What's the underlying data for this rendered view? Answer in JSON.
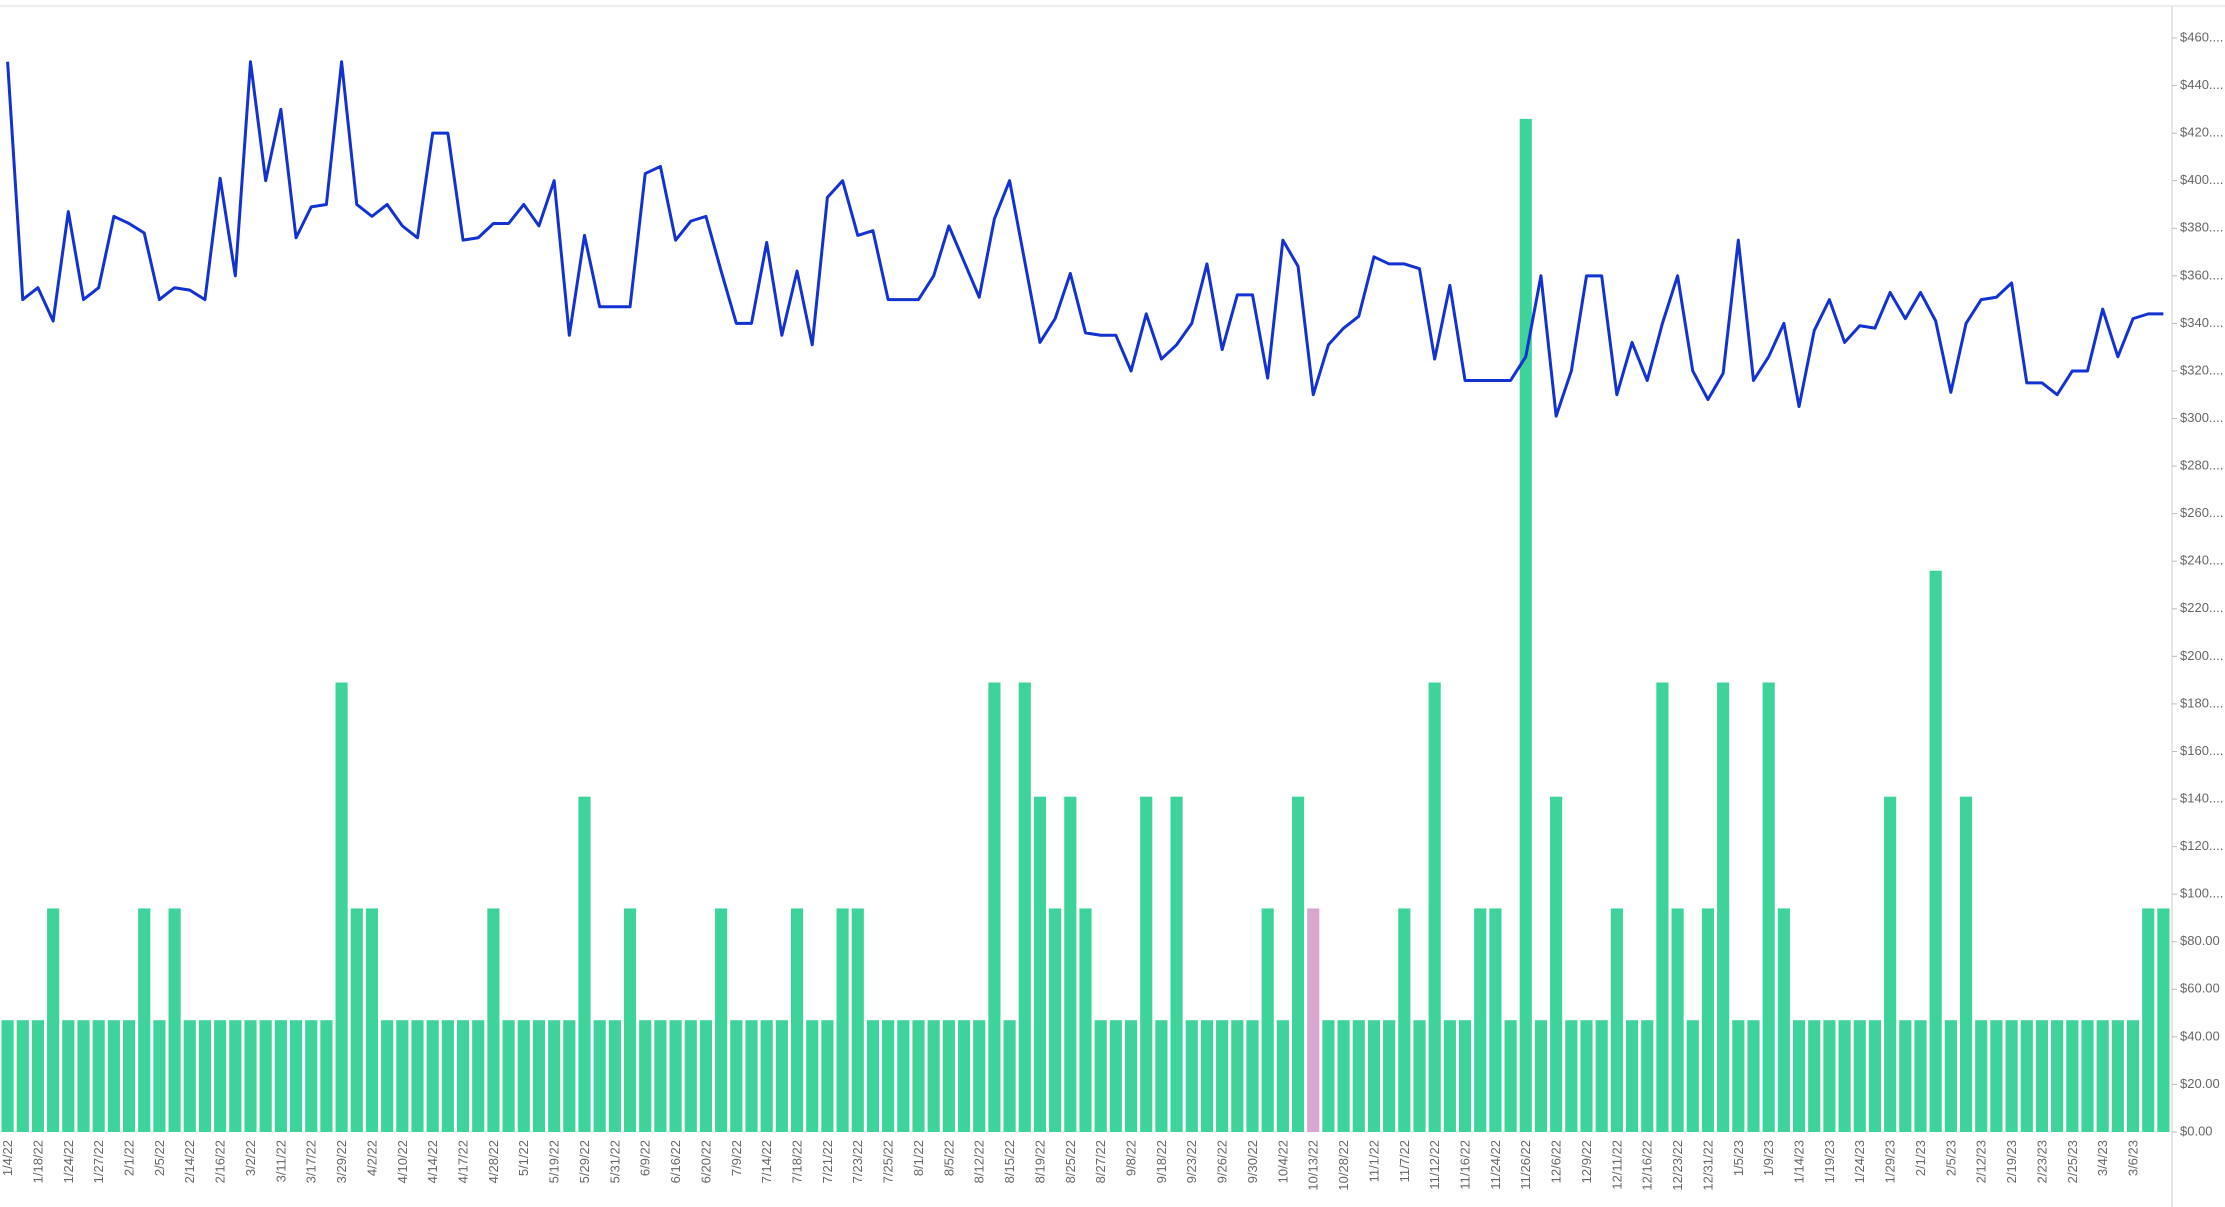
{
  "chart_data": {
    "type": "combo",
    "categories": [
      "1/4/22",
      null,
      "1/18/22",
      null,
      "1/24/22",
      null,
      "1/27/22",
      null,
      "2/1/22",
      null,
      "2/5/22",
      null,
      "2/14/22",
      null,
      "2/16/22",
      null,
      "3/2/22",
      null,
      "3/11/22",
      null,
      "3/17/22",
      null,
      "3/29/22",
      null,
      "4/2/22",
      null,
      "4/10/22",
      null,
      "4/14/22",
      null,
      "4/17/22",
      null,
      "4/28/22",
      null,
      "5/1/22",
      null,
      "5/19/22",
      null,
      "5/29/22",
      null,
      "5/31/22",
      null,
      "6/9/22",
      null,
      "6/16/22",
      null,
      "6/20/22",
      null,
      "7/9/22",
      null,
      "7/14/22",
      null,
      "7/18/22",
      null,
      "7/21/22",
      null,
      "7/23/22",
      null,
      "7/25/22",
      null,
      "8/1/22",
      null,
      "8/5/22",
      null,
      "8/12/22",
      null,
      "8/15/22",
      null,
      "8/19/22",
      null,
      "8/25/22",
      null,
      "8/27/22",
      null,
      "9/8/22",
      null,
      "9/18/22",
      null,
      "9/23/22",
      null,
      "9/26/22",
      null,
      "9/30/22",
      null,
      "10/4/22",
      null,
      "10/13/22",
      null,
      "10/28/22",
      null,
      "11/1/22",
      null,
      "11/7/22",
      null,
      "11/12/22",
      null,
      "11/16/22",
      null,
      "11/24/22",
      null,
      "11/26/22",
      null,
      "12/6/22",
      null,
      "12/9/22",
      null,
      "12/11/22",
      null,
      "12/16/22",
      null,
      "12/23/22",
      null,
      "12/31/22",
      null,
      "1/5/23",
      null,
      "1/9/23",
      null,
      "1/14/23",
      null,
      "1/19/23",
      null,
      "1/24/23",
      null,
      "1/29/23",
      null,
      "2/1/23",
      null,
      "2/5/23",
      null,
      "2/12/23",
      null,
      "2/19/23",
      null,
      "2/23/23",
      null,
      "2/25/23",
      null,
      "3/4/23",
      null,
      "3/6/23",
      null,
      null
    ],
    "series": [
      {
        "type": "bar",
        "color": "#3dd39a",
        "point_colors": {
          "86": "#d9a6cf"
        },
        "values": [
          47,
          47,
          47,
          94,
          47,
          47,
          47,
          47,
          47,
          94,
          47,
          94,
          47,
          47,
          47,
          47,
          47,
          47,
          47,
          47,
          47,
          47,
          189,
          94,
          94,
          47,
          47,
          47,
          47,
          47,
          47,
          47,
          94,
          47,
          47,
          47,
          47,
          47,
          141,
          47,
          47,
          94,
          47,
          47,
          47,
          47,
          47,
          94,
          47,
          47,
          47,
          47,
          94,
          47,
          47,
          94,
          94,
          47,
          47,
          47,
          47,
          47,
          47,
          47,
          47,
          189,
          47,
          189,
          141,
          94,
          141,
          94,
          47,
          47,
          47,
          141,
          47,
          141,
          47,
          47,
          47,
          47,
          47,
          94,
          47,
          141,
          94,
          47,
          47,
          47,
          47,
          47,
          94,
          47,
          189,
          47,
          47,
          94,
          94,
          47,
          426,
          47,
          141,
          47,
          47,
          47,
          94,
          47,
          47,
          189,
          94,
          47,
          94,
          189,
          47,
          47,
          189,
          94,
          47,
          47,
          47,
          47,
          47,
          47,
          141,
          47,
          47,
          236,
          47,
          141,
          47,
          47,
          47,
          47,
          47,
          47,
          47,
          47,
          47,
          47,
          47,
          94,
          94
        ]
      },
      {
        "type": "line",
        "color": "#1232d1",
        "values": [
          450,
          350,
          355,
          341,
          387,
          350,
          355,
          385,
          382,
          378,
          350,
          355,
          354,
          350,
          401,
          360,
          450,
          400,
          430,
          376,
          389,
          390,
          450,
          390,
          385,
          390,
          381,
          376,
          420,
          420,
          375,
          376,
          382,
          382,
          390,
          381,
          400,
          335,
          377,
          347,
          347,
          347,
          403,
          406,
          375,
          383,
          385,
          362,
          340,
          340,
          374,
          335,
          362,
          331,
          393,
          400,
          377,
          379,
          350,
          350,
          350,
          360,
          381,
          366,
          351,
          384,
          400,
          366,
          332,
          342,
          361,
          336,
          335,
          335,
          320,
          344,
          325,
          331,
          340,
          365,
          329,
          352,
          352,
          317,
          375,
          364,
          310,
          331,
          338,
          343,
          368,
          365,
          365,
          363,
          325,
          356,
          316,
          316,
          316,
          316,
          326,
          360,
          301,
          320,
          360,
          360,
          310,
          332,
          316,
          340,
          360,
          320,
          308,
          319,
          375,
          316,
          326,
          340,
          305,
          337,
          350,
          332,
          339,
          338,
          353,
          342,
          353,
          341,
          311,
          340,
          350,
          351,
          357,
          315,
          315,
          310,
          320,
          320,
          346,
          326,
          342,
          344,
          344
        ]
      }
    ],
    "ylim": [
      0,
      460
    ],
    "yticks": [
      {
        "value": 0,
        "label": "$0.00"
      },
      {
        "value": 20,
        "label": "$20.00"
      },
      {
        "value": 40,
        "label": "$40.00"
      },
      {
        "value": 60,
        "label": "$60.00"
      },
      {
        "value": 80,
        "label": "$80.00"
      },
      {
        "value": 100,
        "label": "$100...."
      },
      {
        "value": 120,
        "label": "$120...."
      },
      {
        "value": 140,
        "label": "$140...."
      },
      {
        "value": 160,
        "label": "$160...."
      },
      {
        "value": 180,
        "label": "$180...."
      },
      {
        "value": 200,
        "label": "$200...."
      },
      {
        "value": 220,
        "label": "$220...."
      },
      {
        "value": 240,
        "label": "$240...."
      },
      {
        "value": 260,
        "label": "$260...."
      },
      {
        "value": 280,
        "label": "$280...."
      },
      {
        "value": 300,
        "label": "$300...."
      },
      {
        "value": 320,
        "label": "$320...."
      },
      {
        "value": 340,
        "label": "$340...."
      },
      {
        "value": 360,
        "label": "$360...."
      },
      {
        "value": 380,
        "label": "$380...."
      },
      {
        "value": 400,
        "label": "$400...."
      },
      {
        "value": 420,
        "label": "$420...."
      },
      {
        "value": 440,
        "label": "$440...."
      },
      {
        "value": 460,
        "label": "$460...."
      }
    ],
    "grid": false
  }
}
